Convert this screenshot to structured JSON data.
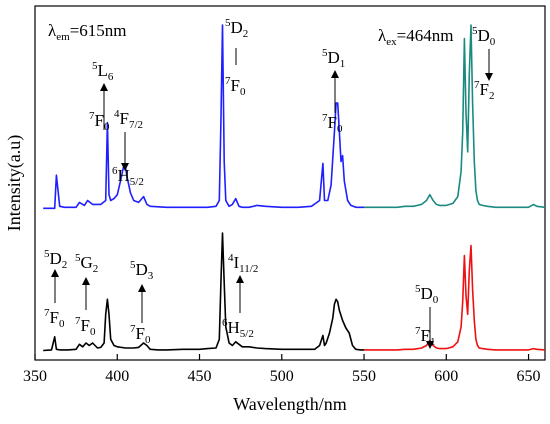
{
  "chart_data": {
    "type": "line",
    "title": "",
    "xlabel": "Wavelength/nm",
    "ylabel": "Intensity(a.u)",
    "xlim": [
      350,
      660
    ],
    "xticks": [
      350,
      400,
      450,
      500,
      550,
      600,
      650
    ],
    "y_tick_labels_shown": false,
    "grid": false,
    "series": [
      {
        "color": "#1f1fff",
        "x": [
          355,
          362,
          363,
          365,
          368,
          375,
          377,
          380,
          382,
          385,
          390,
          393,
          394,
          395,
          396,
          398,
          400,
          402,
          404,
          405,
          406,
          408,
          410,
          413,
          416,
          418,
          420,
          430,
          440,
          450,
          455,
          460,
          462,
          463,
          464,
          465,
          466,
          468,
          470,
          472,
          474,
          476,
          480,
          485,
          490,
          500,
          510,
          518,
          523,
          525,
          526,
          528,
          530,
          532,
          533,
          534,
          535,
          536,
          537,
          538,
          540,
          542,
          545,
          550
        ],
        "y": [
          0.06,
          0.06,
          0.23,
          0.07,
          0.065,
          0.065,
          0.09,
          0.075,
          0.1,
          0.08,
          0.08,
          0.1,
          0.5,
          0.13,
          0.1,
          0.11,
          0.13,
          0.2,
          0.28,
          0.27,
          0.22,
          0.14,
          0.1,
          0.09,
          0.12,
          0.08,
          0.07,
          0.065,
          0.065,
          0.065,
          0.065,
          0.07,
          0.1,
          0.5,
          1.0,
          0.3,
          0.1,
          0.07,
          0.08,
          0.11,
          0.07,
          0.065,
          0.065,
          0.075,
          0.07,
          0.065,
          0.065,
          0.07,
          0.1,
          0.29,
          0.1,
          0.1,
          0.18,
          0.45,
          0.6,
          0.6,
          0.45,
          0.3,
          0.33,
          0.2,
          0.1,
          0.075,
          0.065,
          0.065
        ]
      },
      {
        "color": "#1a8a80",
        "x": [
          550,
          560,
          570,
          575,
          580,
          585,
          588,
          590,
          592,
          594,
          596,
          600,
          604,
          607,
          609,
          610,
          611,
          612,
          613,
          614,
          615,
          616,
          617,
          618,
          619,
          620,
          622,
          625,
          630,
          640,
          650,
          653,
          655,
          660
        ],
        "y": [
          0.065,
          0.065,
          0.065,
          0.07,
          0.07,
          0.08,
          0.1,
          0.13,
          0.1,
          0.08,
          0.075,
          0.075,
          0.085,
          0.12,
          0.25,
          0.45,
          0.93,
          0.55,
          0.35,
          0.75,
          1.0,
          0.6,
          0.3,
          0.15,
          0.1,
          0.08,
          0.075,
          0.07,
          0.065,
          0.065,
          0.065,
          0.08,
          0.07,
          0.065
        ]
      },
      {
        "color": "#000000",
        "x": [
          355,
          360,
          362,
          363,
          365,
          370,
          375,
          377,
          379,
          381,
          383,
          385,
          388,
          390,
          392,
          393,
          394,
          395,
          396,
          398,
          400,
          405,
          410,
          413,
          416,
          418,
          420,
          425,
          430,
          440,
          450,
          455,
          460,
          462,
          463,
          464,
          465,
          466,
          468,
          470,
          472,
          474,
          476,
          480,
          485,
          490,
          500,
          510,
          520,
          523,
          525,
          526,
          527,
          529,
          531,
          532,
          533,
          534,
          535,
          536,
          537,
          539,
          541,
          543,
          545,
          548,
          550
        ],
        "y": [
          0.06,
          0.065,
          0.17,
          0.07,
          0.065,
          0.065,
          0.07,
          0.11,
          0.09,
          0.12,
          0.1,
          0.12,
          0.08,
          0.085,
          0.12,
          0.35,
          0.47,
          0.35,
          0.15,
          0.1,
          0.09,
          0.08,
          0.08,
          0.085,
          0.12,
          0.1,
          0.07,
          0.065,
          0.065,
          0.07,
          0.07,
          0.075,
          0.08,
          0.15,
          0.6,
          1.0,
          0.6,
          0.25,
          0.12,
          0.1,
          0.13,
          0.11,
          0.09,
          0.09,
          0.08,
          0.075,
          0.07,
          0.07,
          0.07,
          0.1,
          0.18,
          0.1,
          0.12,
          0.2,
          0.32,
          0.43,
          0.47,
          0.45,
          0.38,
          0.34,
          0.3,
          0.24,
          0.2,
          0.1,
          0.07,
          0.065,
          0.065
        ]
      },
      {
        "color": "#ee1111",
        "x": [
          550,
          560,
          570,
          575,
          580,
          585,
          588,
          590,
          592,
          594,
          596,
          600,
          604,
          607,
          609,
          610,
          611,
          612,
          613,
          614,
          615,
          616,
          617,
          618,
          619,
          620,
          622,
          625,
          630,
          640,
          650,
          653,
          655,
          660
        ],
        "y": [
          0.065,
          0.065,
          0.065,
          0.07,
          0.07,
          0.08,
          0.1,
          0.14,
          0.1,
          0.08,
          0.075,
          0.075,
          0.09,
          0.13,
          0.25,
          0.45,
          0.82,
          0.5,
          0.35,
          0.7,
          0.9,
          0.55,
          0.3,
          0.15,
          0.1,
          0.08,
          0.075,
          0.07,
          0.065,
          0.065,
          0.065,
          0.075,
          0.07,
          0.065
        ]
      }
    ],
    "annotations": {
      "lambda_em": "λ",
      "lambda_em_sub": "em",
      "lambda_em_val": "=615nm",
      "lambda_ex": "λ",
      "lambda_ex_sub": "ex",
      "lambda_ex_val": "=464nm"
    }
  }
}
